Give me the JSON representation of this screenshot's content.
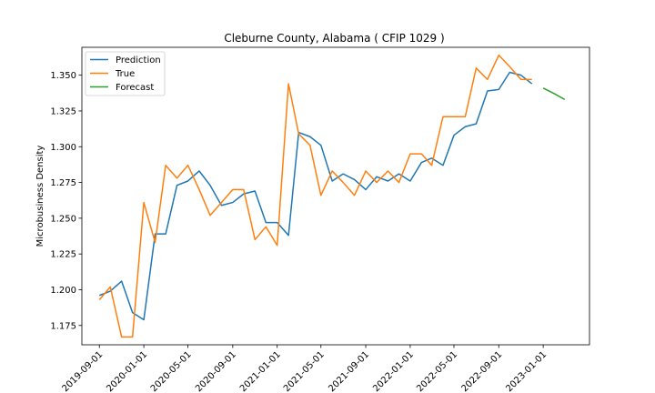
{
  "chart_data": {
    "type": "line",
    "title": "Cleburne County, Alabama ( CFIP 1029 )",
    "xlabel": "",
    "ylabel": "Microbusiness Density",
    "x_tick_labels": [
      "2019-09-01",
      "2020-01-01",
      "2020-05-01",
      "2020-09-01",
      "2021-01-01",
      "2021-05-01",
      "2021-09-01",
      "2022-01-01",
      "2022-05-01",
      "2022-09-01",
      "2023-01-01"
    ],
    "y_tick_labels": [
      "1.175",
      "1.200",
      "1.225",
      "1.250",
      "1.275",
      "1.300",
      "1.325",
      "1.350"
    ],
    "xlim": [
      "2019-07-15",
      "2023-05-08"
    ],
    "ylim": [
      1.1615,
      1.3695
    ],
    "grid": false,
    "legend_position": "top-left",
    "series": [
      {
        "name": "Prediction",
        "color": "#1f77b4",
        "x": [
          "2019-09-01",
          "2019-10-01",
          "2019-11-01",
          "2019-12-01",
          "2020-01-01",
          "2020-02-01",
          "2020-03-01",
          "2020-04-01",
          "2020-05-01",
          "2020-06-01",
          "2020-07-01",
          "2020-08-01",
          "2020-09-01",
          "2020-10-01",
          "2020-11-01",
          "2020-12-01",
          "2021-01-01",
          "2021-02-01",
          "2021-03-01",
          "2021-04-01",
          "2021-05-01",
          "2021-06-01",
          "2021-07-01",
          "2021-08-01",
          "2021-09-01",
          "2021-10-01",
          "2021-11-01",
          "2021-12-01",
          "2022-01-01",
          "2022-02-01",
          "2022-03-01",
          "2022-04-01",
          "2022-05-01",
          "2022-06-01",
          "2022-07-01",
          "2022-08-01",
          "2022-09-01",
          "2022-10-01",
          "2022-11-01",
          "2022-12-01"
        ],
        "values": [
          1.196,
          1.199,
          1.206,
          1.184,
          1.179,
          1.239,
          1.239,
          1.273,
          1.276,
          1.283,
          1.273,
          1.259,
          1.261,
          1.267,
          1.269,
          1.247,
          1.247,
          1.238,
          1.31,
          1.307,
          1.301,
          1.276,
          1.281,
          1.277,
          1.27,
          1.279,
          1.276,
          1.281,
          1.276,
          1.289,
          1.292,
          1.287,
          1.308,
          1.314,
          1.316,
          1.339,
          1.34,
          1.352,
          1.35,
          1.344
        ]
      },
      {
        "name": "True",
        "color": "#ff7f0e",
        "x": [
          "2019-09-01",
          "2019-10-01",
          "2019-11-01",
          "2019-12-01",
          "2020-01-01",
          "2020-02-01",
          "2020-03-01",
          "2020-04-01",
          "2020-05-01",
          "2020-06-01",
          "2020-07-01",
          "2020-08-01",
          "2020-09-01",
          "2020-10-01",
          "2020-11-01",
          "2020-12-01",
          "2021-01-01",
          "2021-02-01",
          "2021-03-01",
          "2021-04-01",
          "2021-05-01",
          "2021-06-01",
          "2021-07-01",
          "2021-08-01",
          "2021-09-01",
          "2021-10-01",
          "2021-11-01",
          "2021-12-01",
          "2022-01-01",
          "2022-02-01",
          "2022-03-01",
          "2022-04-01",
          "2022-05-01",
          "2022-06-01",
          "2022-07-01",
          "2022-08-01",
          "2022-09-01",
          "2022-10-01",
          "2022-11-01",
          "2022-12-01"
        ],
        "values": [
          1.193,
          1.202,
          1.167,
          1.167,
          1.261,
          1.233,
          1.287,
          1.278,
          1.287,
          1.27,
          1.252,
          1.261,
          1.27,
          1.27,
          1.235,
          1.244,
          1.231,
          1.344,
          1.309,
          1.301,
          1.266,
          1.283,
          1.275,
          1.266,
          1.283,
          1.275,
          1.283,
          1.275,
          1.295,
          1.295,
          1.287,
          1.321,
          1.321,
          1.321,
          1.355,
          1.347,
          1.364,
          1.356,
          1.347,
          1.347
        ]
      },
      {
        "name": "Forecast",
        "color": "#2ca02c",
        "x": [
          "2023-01-01",
          "2023-02-01",
          "2023-03-01"
        ],
        "values": [
          1.341,
          1.337,
          1.333
        ]
      }
    ]
  }
}
